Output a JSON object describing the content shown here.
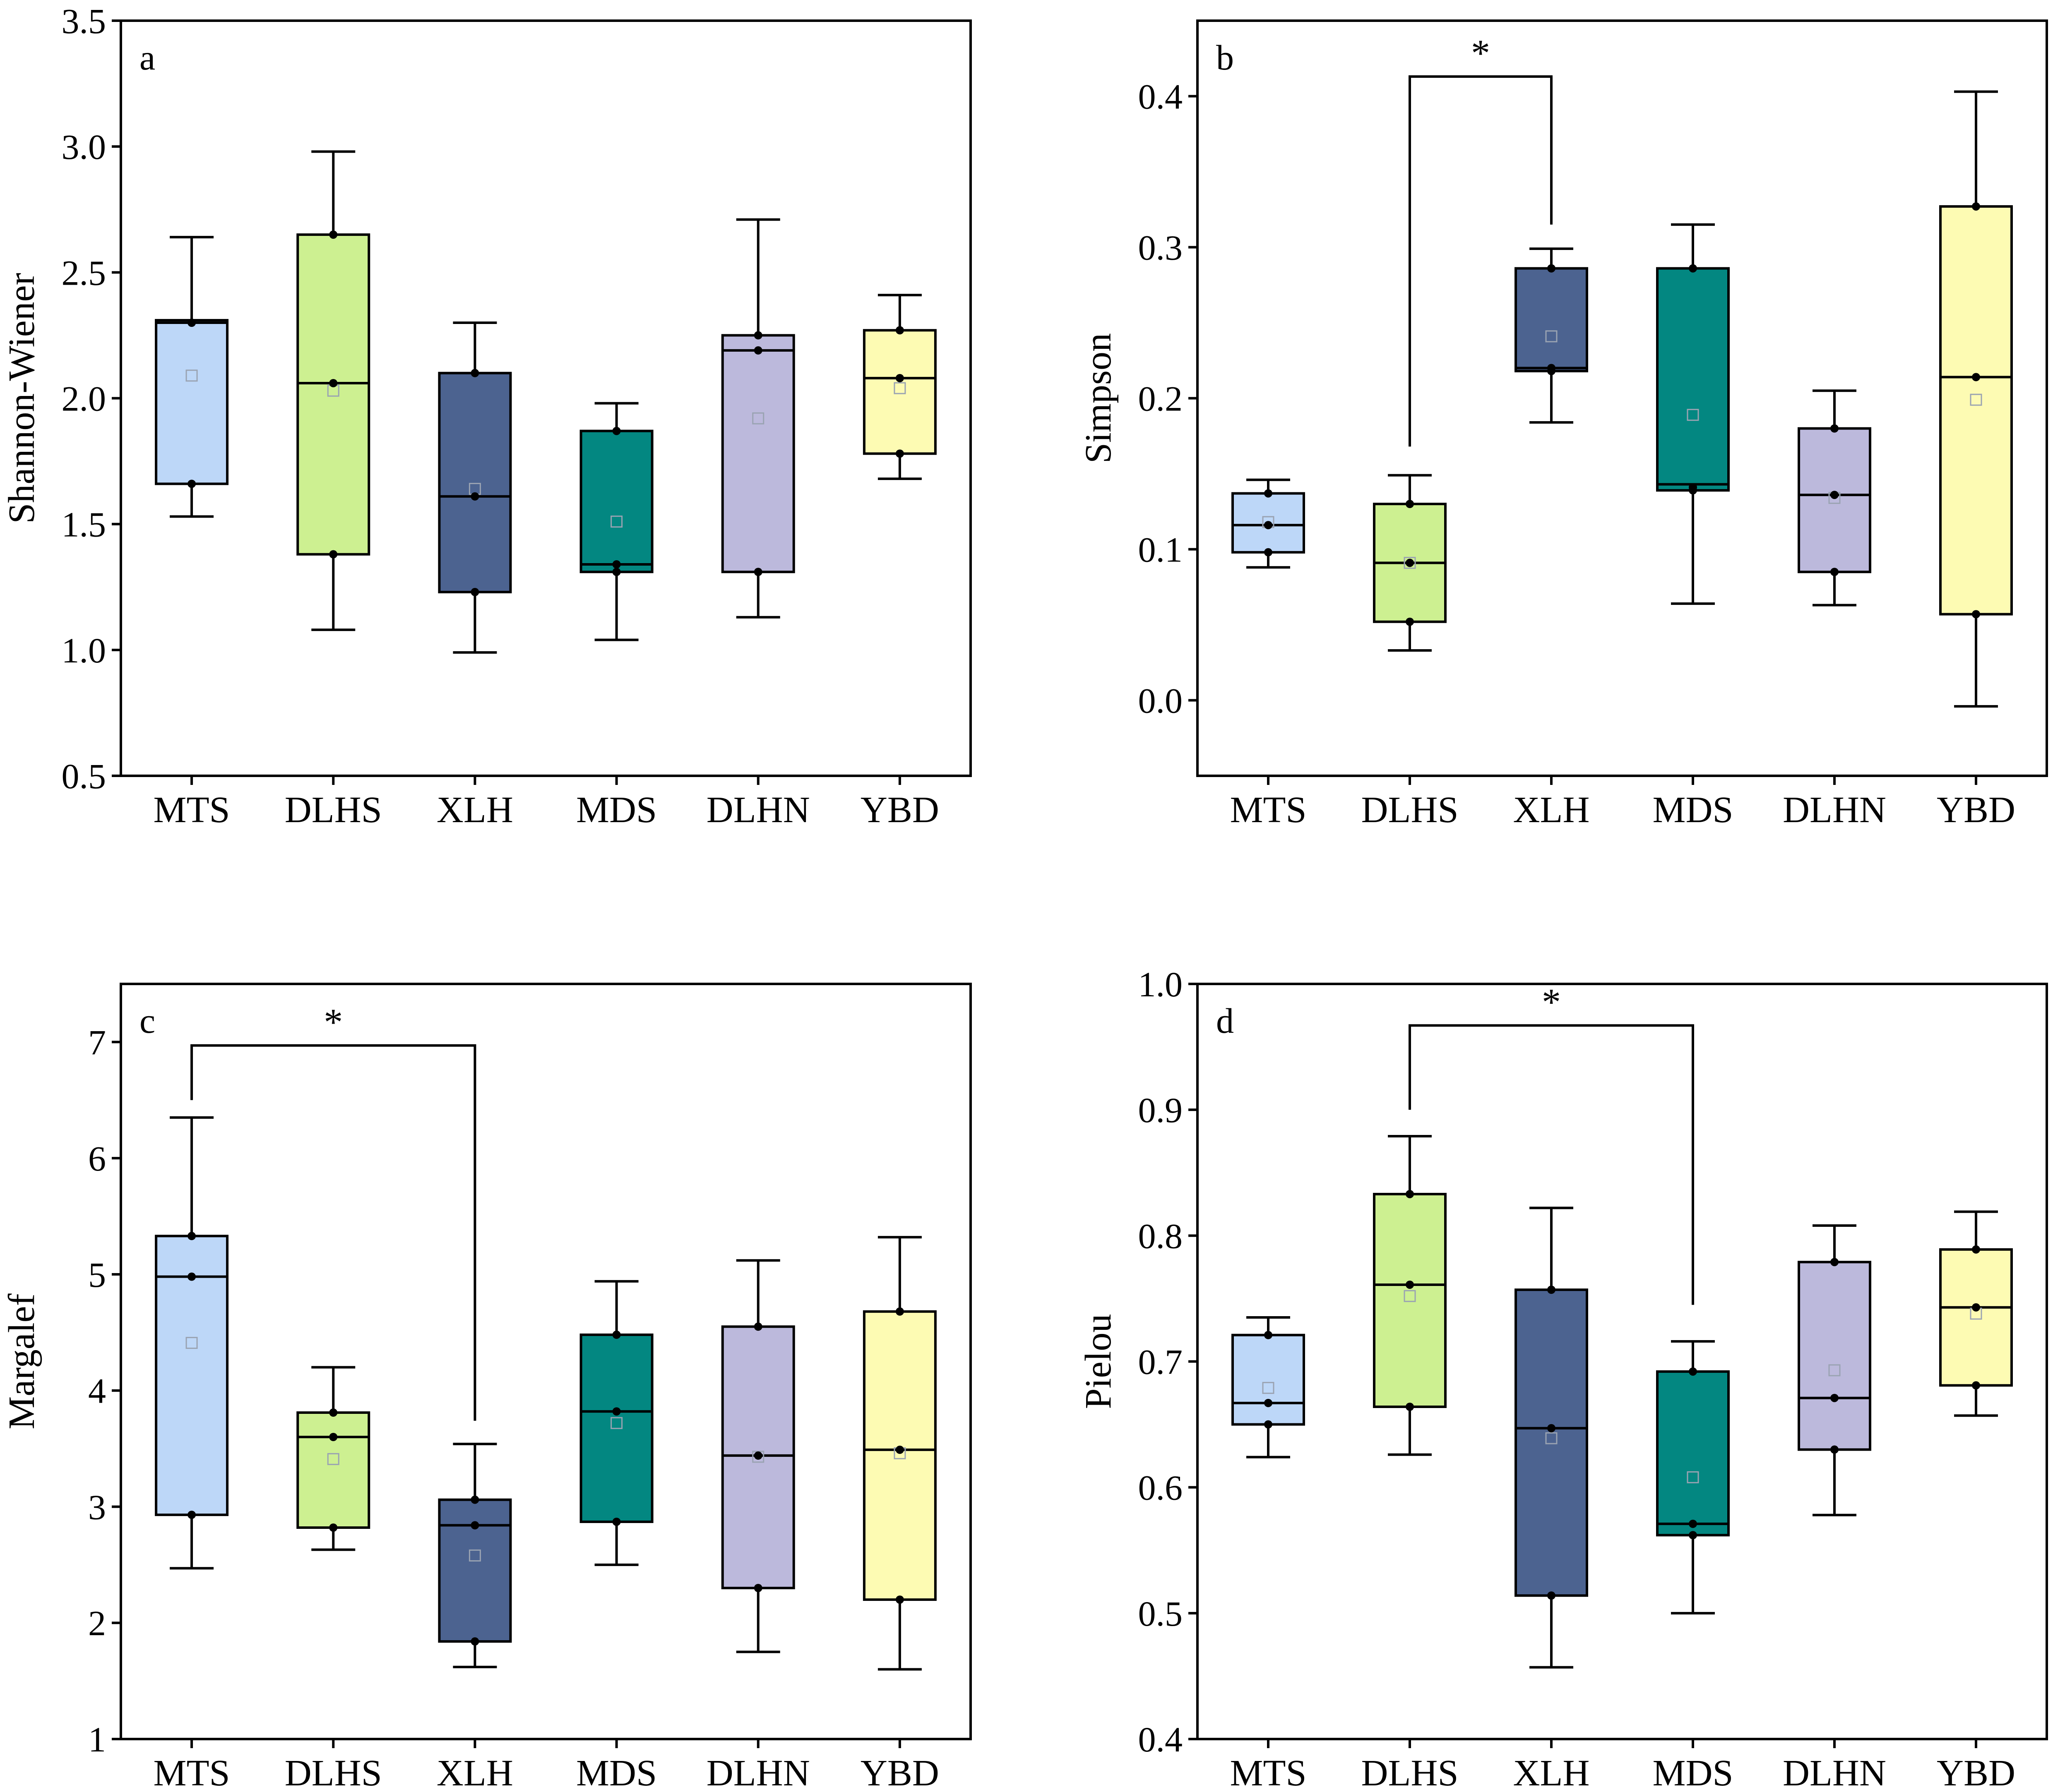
{
  "figure": {
    "categories": [
      "MTS",
      "DLHS",
      "XLH",
      "MDS",
      "DLHN",
      "YBD"
    ],
    "colors": [
      "#bdd7f8",
      "#cdf091",
      "#4c6390",
      "#038781",
      "#bcb9dc",
      "#fdfbb3"
    ]
  },
  "chart_data": [
    {
      "type": "box",
      "panel": "a",
      "ylabel": "Shannon-Wiener",
      "ylim": [
        0.5,
        3.5
      ],
      "yticks": [
        0.5,
        1.0,
        1.5,
        2.0,
        2.5,
        3.0,
        3.5
      ],
      "tick_decimals": 1,
      "categories": [
        "MTS",
        "DLHS",
        "XLH",
        "MDS",
        "DLHN",
        "YBD"
      ],
      "boxes": [
        {
          "min": 1.53,
          "q1": 1.66,
          "median": 2.3,
          "q3": 2.31,
          "max": 2.64,
          "mean": 2.09,
          "points": [
            2.3,
            2.3,
            1.66
          ]
        },
        {
          "min": 1.08,
          "q1": 1.38,
          "median": 2.06,
          "q3": 2.65,
          "max": 2.98,
          "mean": 2.03,
          "points": [
            2.65,
            2.06,
            1.38
          ]
        },
        {
          "min": 0.99,
          "q1": 1.23,
          "median": 1.61,
          "q3": 2.1,
          "max": 2.3,
          "mean": 1.64,
          "points": [
            2.1,
            1.61,
            1.23
          ]
        },
        {
          "min": 1.04,
          "q1": 1.31,
          "median": 1.34,
          "q3": 1.87,
          "max": 1.98,
          "mean": 1.51,
          "points": [
            1.87,
            1.34,
            1.31
          ]
        },
        {
          "min": 1.13,
          "q1": 1.31,
          "median": 2.19,
          "q3": 2.25,
          "max": 2.71,
          "mean": 1.92,
          "points": [
            2.25,
            2.19,
            1.31
          ]
        },
        {
          "min": 1.68,
          "q1": 1.78,
          "median": 2.08,
          "q3": 2.27,
          "max": 2.41,
          "mean": 2.04,
          "points": [
            2.27,
            2.08,
            1.78
          ]
        }
      ],
      "significance": []
    },
    {
      "type": "box",
      "panel": "b",
      "ylabel": "Simpson",
      "ylim": [
        -0.05,
        0.45
      ],
      "yticks": [
        0.0,
        0.1,
        0.2,
        0.3,
        0.4
      ],
      "tick_decimals": 1,
      "categories": [
        "MTS",
        "DLHS",
        "XLH",
        "MDS",
        "DLHN",
        "YBD"
      ],
      "boxes": [
        {
          "min": 0.088,
          "q1": 0.098,
          "median": 0.116,
          "q3": 0.137,
          "max": 0.146,
          "mean": 0.118,
          "points": [
            0.137,
            0.116,
            0.098
          ]
        },
        {
          "min": 0.033,
          "q1": 0.052,
          "median": 0.091,
          "q3": 0.13,
          "max": 0.149,
          "mean": 0.091,
          "points": [
            0.13,
            0.091,
            0.052
          ]
        },
        {
          "min": 0.184,
          "q1": 0.218,
          "median": 0.22,
          "q3": 0.286,
          "max": 0.299,
          "mean": 0.241,
          "points": [
            0.286,
            0.22,
            0.218
          ]
        },
        {
          "min": 0.064,
          "q1": 0.139,
          "median": 0.143,
          "q3": 0.286,
          "max": 0.315,
          "mean": 0.189,
          "points": [
            0.286,
            0.141,
            0.139
          ]
        },
        {
          "min": 0.063,
          "q1": 0.085,
          "median": 0.136,
          "q3": 0.18,
          "max": 0.205,
          "mean": 0.134,
          "points": [
            0.18,
            0.136,
            0.085
          ]
        },
        {
          "min": -0.004,
          "q1": 0.057,
          "median": 0.214,
          "q3": 0.327,
          "max": 0.403,
          "mean": 0.199,
          "points": [
            0.327,
            0.214,
            0.057
          ]
        }
      ],
      "significance": [
        {
          "from": 1,
          "to": 2,
          "level": 0.413,
          "from_start": 0.168,
          "to_start": 0.315,
          "label": "*"
        }
      ]
    },
    {
      "type": "box",
      "panel": "c",
      "ylabel": "Margalef",
      "ylim": [
        1,
        7.5
      ],
      "yticks": [
        1,
        2,
        3,
        4,
        5,
        6,
        7
      ],
      "tick_decimals": 0,
      "categories": [
        "MTS",
        "DLHS",
        "XLH",
        "MDS",
        "DLHN",
        "YBD"
      ],
      "boxes": [
        {
          "min": 2.47,
          "q1": 2.93,
          "median": 4.98,
          "q3": 5.33,
          "max": 6.35,
          "mean": 4.41,
          "points": [
            5.33,
            4.98,
            2.93
          ]
        },
        {
          "min": 2.63,
          "q1": 2.82,
          "median": 3.6,
          "q3": 3.81,
          "max": 4.2,
          "mean": 3.41,
          "points": [
            3.81,
            3.6,
            2.82
          ]
        },
        {
          "min": 1.62,
          "q1": 1.84,
          "median": 2.84,
          "q3": 3.06,
          "max": 3.54,
          "mean": 2.58,
          "points": [
            3.06,
            2.84,
            1.84
          ]
        },
        {
          "min": 2.5,
          "q1": 2.87,
          "median": 3.82,
          "q3": 4.48,
          "max": 4.94,
          "mean": 3.72,
          "points": [
            4.48,
            3.82,
            2.87
          ]
        },
        {
          "min": 1.75,
          "q1": 2.3,
          "median": 3.44,
          "q3": 4.55,
          "max": 5.12,
          "mean": 3.43,
          "points": [
            4.55,
            3.44,
            2.3
          ]
        },
        {
          "min": 1.6,
          "q1": 2.2,
          "median": 3.49,
          "q3": 4.68,
          "max": 5.32,
          "mean": 3.46,
          "points": [
            4.68,
            3.49,
            2.2
          ]
        }
      ],
      "significance": [
        {
          "from": 0,
          "to": 2,
          "level": 6.97,
          "from_start": 6.5,
          "to_start": 3.74,
          "label": "*"
        }
      ]
    },
    {
      "type": "box",
      "panel": "d",
      "ylabel": "Pielou",
      "ylim": [
        0.4,
        1.0
      ],
      "yticks": [
        0.4,
        0.5,
        0.6,
        0.7,
        0.8,
        0.9,
        1.0
      ],
      "tick_decimals": 1,
      "categories": [
        "MTS",
        "DLHS",
        "XLH",
        "MDS",
        "DLHN",
        "YBD"
      ],
      "boxes": [
        {
          "min": 0.624,
          "q1": 0.65,
          "median": 0.667,
          "q3": 0.721,
          "max": 0.735,
          "mean": 0.679,
          "points": [
            0.721,
            0.667,
            0.65
          ]
        },
        {
          "min": 0.626,
          "q1": 0.664,
          "median": 0.761,
          "q3": 0.833,
          "max": 0.879,
          "mean": 0.752,
          "points": [
            0.833,
            0.761,
            0.664
          ]
        },
        {
          "min": 0.457,
          "q1": 0.514,
          "median": 0.647,
          "q3": 0.757,
          "max": 0.822,
          "mean": 0.639,
          "points": [
            0.757,
            0.647,
            0.514
          ]
        },
        {
          "min": 0.5,
          "q1": 0.562,
          "median": 0.571,
          "q3": 0.692,
          "max": 0.716,
          "mean": 0.608,
          "points": [
            0.692,
            0.571,
            0.562
          ]
        },
        {
          "min": 0.578,
          "q1": 0.63,
          "median": 0.671,
          "q3": 0.779,
          "max": 0.808,
          "mean": 0.693,
          "points": [
            0.779,
            0.671,
            0.63
          ]
        },
        {
          "min": 0.657,
          "q1": 0.681,
          "median": 0.743,
          "q3": 0.789,
          "max": 0.819,
          "mean": 0.738,
          "points": [
            0.789,
            0.743,
            0.681
          ]
        }
      ],
      "significance": [
        {
          "from": 1,
          "to": 3,
          "level": 0.967,
          "from_start": 0.9,
          "to_start": 0.745,
          "label": "*"
        }
      ]
    }
  ]
}
